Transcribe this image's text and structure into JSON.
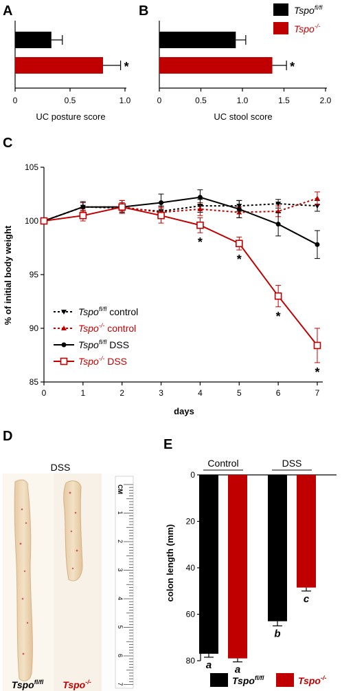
{
  "colors": {
    "black_group": "#000000",
    "red_group": "#c00000"
  },
  "panel_letters": {
    "a": "A",
    "b": "B",
    "c": "C",
    "d": "D",
    "e": "E"
  },
  "legend_top": {
    "fl_italic": "Tspo",
    "fl_sup": "fl/fl",
    "ko_italic": "Tspo",
    "ko_sup": "-/-"
  },
  "chart_data": [
    {
      "id": "A",
      "type": "bar",
      "orientation": "horizontal",
      "xlabel": "UC posture score",
      "xlim": [
        0,
        1.0
      ],
      "ticks": [
        0,
        0.5,
        1.0
      ],
      "tick_labels": [
        "0",
        "0.5",
        "1.0"
      ],
      "series": [
        {
          "group": "fl",
          "value": 0.33,
          "error": 0.1,
          "color": "#000000",
          "mark": ""
        },
        {
          "group": "ko",
          "value": 0.8,
          "error": 0.16,
          "color": "#c00000",
          "mark": "*"
        }
      ]
    },
    {
      "id": "B",
      "type": "bar",
      "orientation": "horizontal",
      "xlabel": "UC stool score",
      "xlim": [
        0,
        2.0
      ],
      "ticks": [
        0,
        0.5,
        1.0,
        1.5,
        2.0
      ],
      "tick_labels": [
        "0",
        "0.5",
        "1.0",
        "1.5",
        "2.0"
      ],
      "series": [
        {
          "group": "fl",
          "value": 0.92,
          "error": 0.12,
          "color": "#000000",
          "mark": ""
        },
        {
          "group": "ko",
          "value": 1.36,
          "error": 0.17,
          "color": "#c00000",
          "mark": "*"
        }
      ]
    },
    {
      "id": "C",
      "type": "line",
      "xlabel": "days",
      "ylabel": "% of initial body weight",
      "xlim": [
        0,
        7
      ],
      "ylim": [
        85,
        105
      ],
      "x": [
        0,
        1,
        2,
        3,
        4,
        5,
        6,
        7
      ],
      "yticks": [
        85,
        90,
        95,
        100,
        105
      ],
      "series": [
        {
          "name_italic": "Tspo",
          "name_sup": "fl/fl",
          "name_rest": " control",
          "color": "#000000",
          "dash": true,
          "marker": "tri-down",
          "values": [
            100,
            101.3,
            101.2,
            100.9,
            101.4,
            101.4,
            101.6,
            101.4
          ],
          "errors": [
            0.2,
            0.4,
            0.4,
            0.5,
            0.6,
            0.5,
            0.4,
            0.5
          ]
        },
        {
          "name_italic": "Tspo",
          "name_sup": "-/-",
          "name_rest": " control",
          "color": "#c00000",
          "dash": true,
          "marker": "tri-up",
          "values": [
            100,
            101.3,
            101.3,
            100.8,
            101.1,
            100.8,
            100.9,
            102.1
          ],
          "errors": [
            0.2,
            0.4,
            0.4,
            0.5,
            0.6,
            0.5,
            0.5,
            0.6
          ]
        },
        {
          "name_italic": "Tspo",
          "name_sup": "fl/fl",
          "name_rest": " DSS",
          "color": "#000000",
          "dash": false,
          "marker": "circle",
          "values": [
            100,
            101.3,
            101.3,
            101.7,
            102.2,
            101.1,
            99.7,
            97.8
          ],
          "errors": [
            0.2,
            0.5,
            0.6,
            0.8,
            0.7,
            0.8,
            1.1,
            1.3
          ]
        },
        {
          "name_italic": "Tspo",
          "name_sup": "-/-",
          "name_rest": " DSS",
          "color": "#c00000",
          "dash": false,
          "marker": "square-open",
          "values": [
            100,
            100.5,
            101.3,
            100.5,
            99.6,
            97.9,
            93.0,
            88.4
          ],
          "errors": [
            0.2,
            0.5,
            0.6,
            0.7,
            0.7,
            0.6,
            1.0,
            1.6
          ]
        }
      ],
      "significance": [
        {
          "x": 4,
          "mark": "*"
        },
        {
          "x": 5,
          "mark": "*"
        },
        {
          "x": 6,
          "mark": "*"
        },
        {
          "x": 7,
          "mark": "*"
        }
      ]
    },
    {
      "id": "E",
      "type": "bar",
      "orientation": "vertical-inverted",
      "ylabel": "colon length (mm)",
      "ylim": [
        0,
        80
      ],
      "yticks": [
        0,
        20,
        40,
        60,
        80
      ],
      "groups": [
        {
          "label": "Control",
          "bars": [
            {
              "group": "fl",
              "value": 77,
              "error": 1.5,
              "color": "#000000",
              "letter": "a"
            },
            {
              "group": "ko",
              "value": 79,
              "error": 1.5,
              "color": "#c00000",
              "letter": "a"
            }
          ]
        },
        {
          "label": "DSS",
          "bars": [
            {
              "group": "fl",
              "value": 63,
              "error": 2.0,
              "color": "#000000",
              "letter": "b"
            },
            {
              "group": "ko",
              "value": 48.5,
              "error": 1.5,
              "color": "#c00000",
              "letter": "c"
            }
          ]
        }
      ]
    }
  ],
  "panel_d": {
    "group_label": "DSS",
    "ruler_unit": "CM",
    "ruler_numbers": [
      "1",
      "2",
      "3",
      "4",
      "5",
      "6",
      "7"
    ],
    "label_fl_italic": "Tspo",
    "label_fl_sup": "fl/fl",
    "label_ko_italic": "Tspo",
    "label_ko_sup": "-/-"
  },
  "legend_bottom": {
    "fl_italic": "Tspo",
    "fl_sup": "fl/fl",
    "ko_italic": "Tspo",
    "ko_sup": "-/-"
  }
}
